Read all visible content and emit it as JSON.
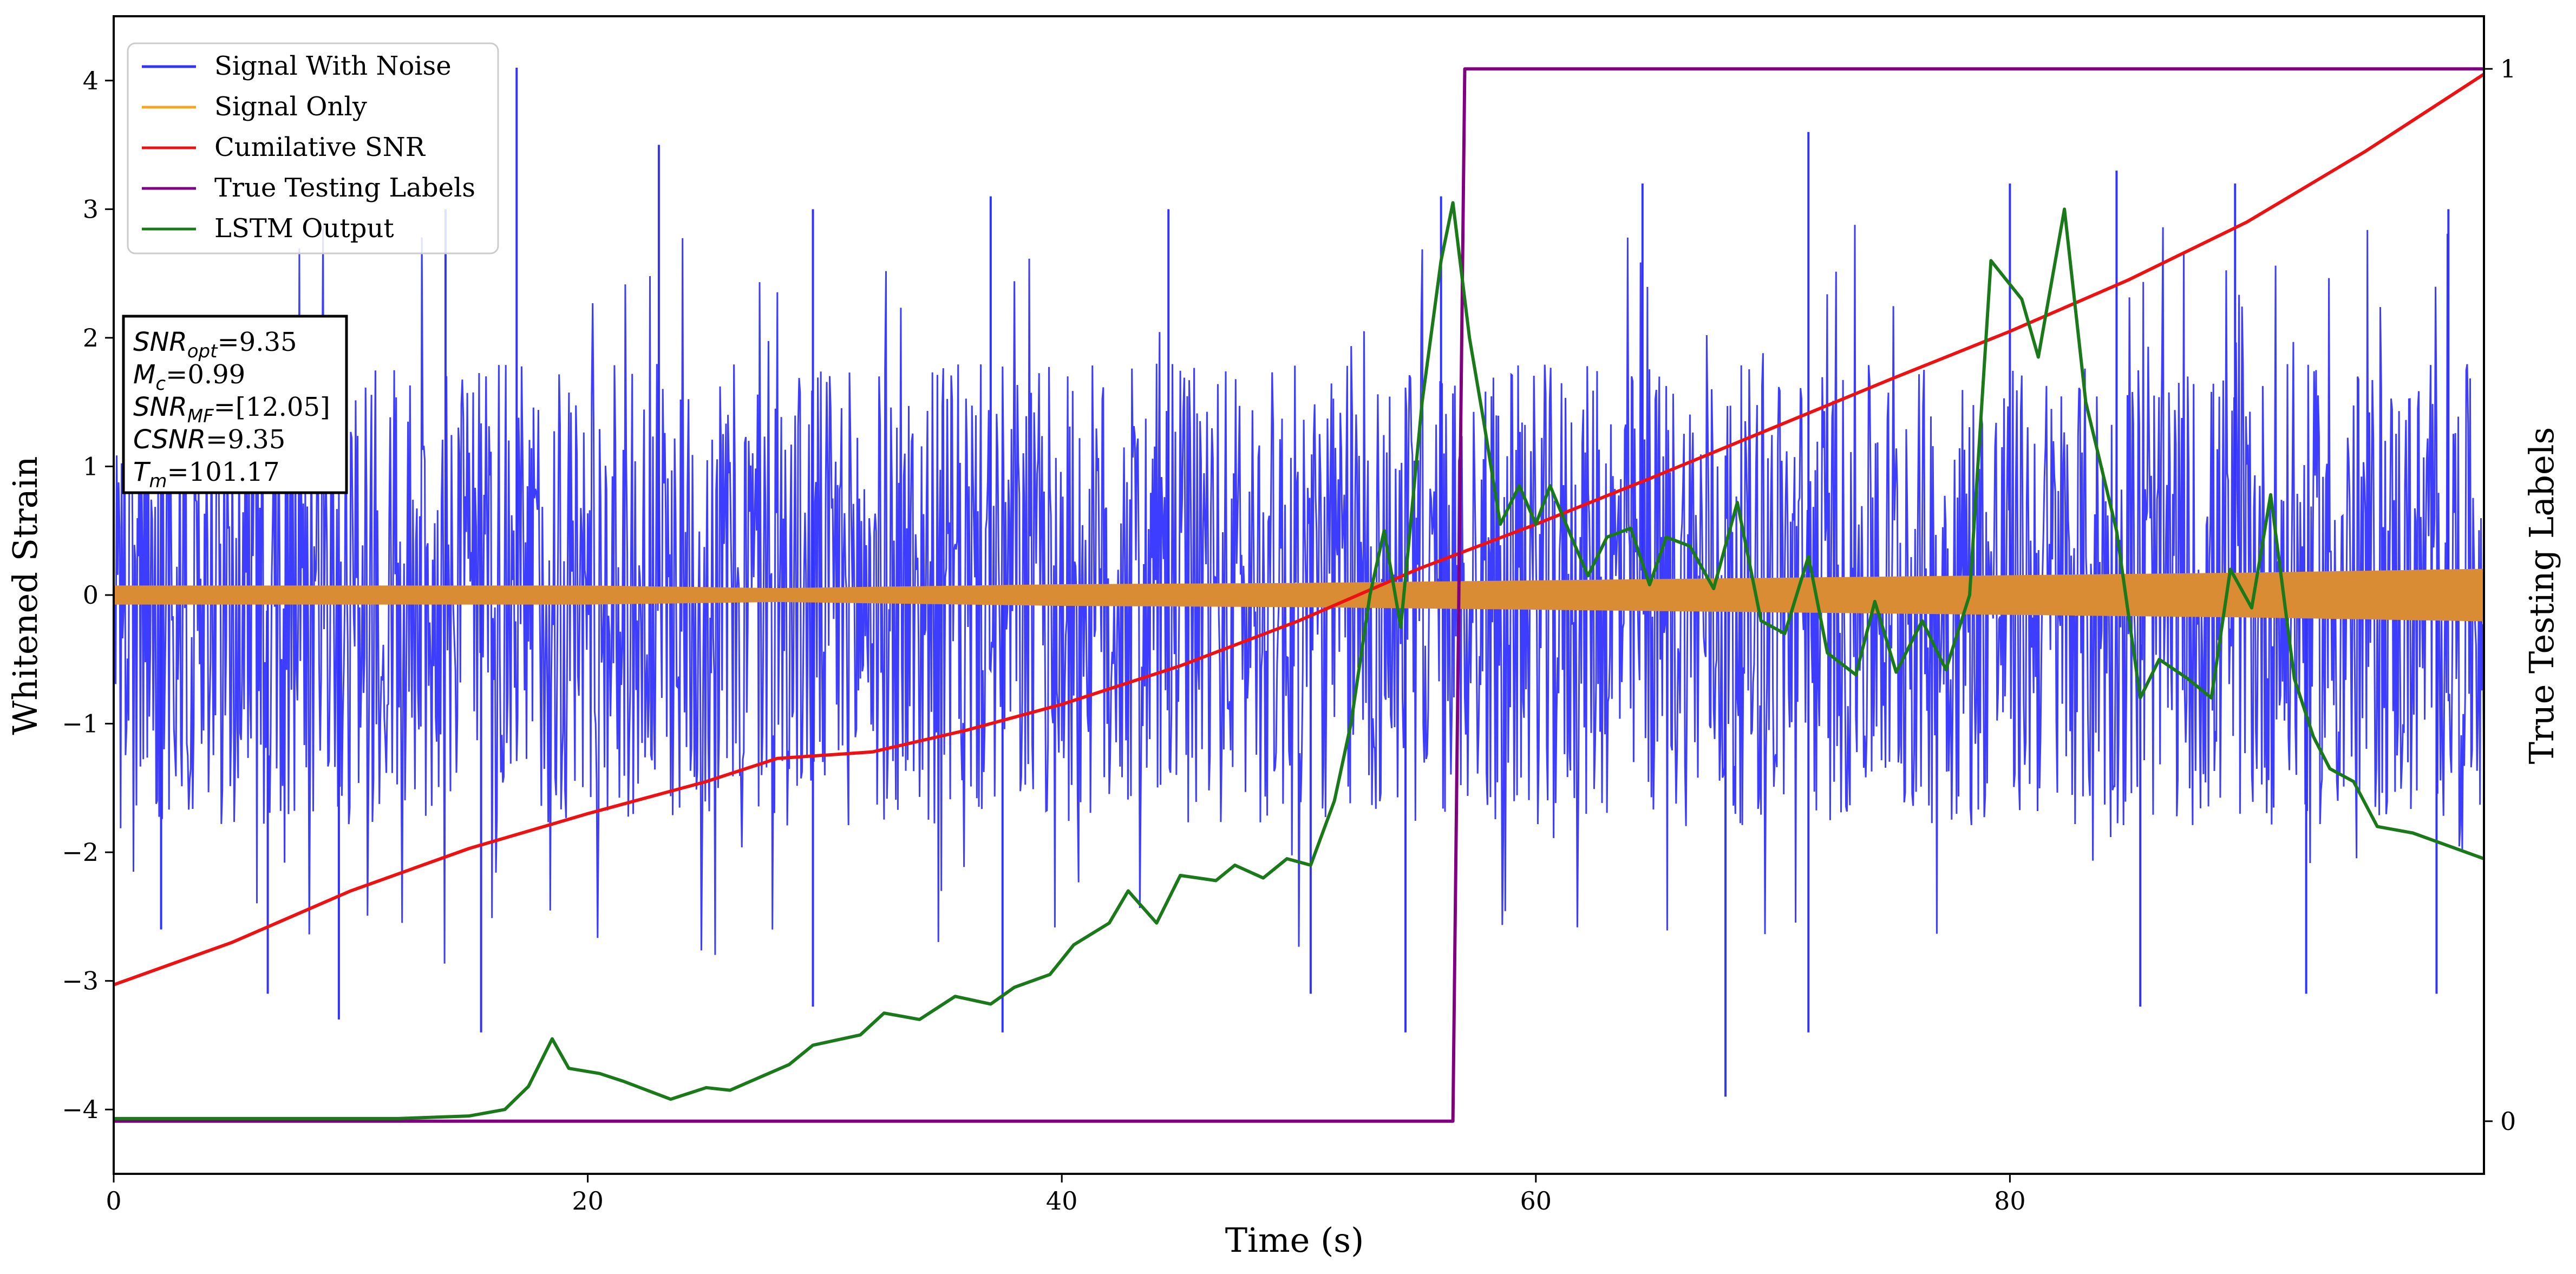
{
  "chart_data": {
    "type": "line",
    "xlabel": "Time (s)",
    "ylabel": "Whitened Strain",
    "y2label": "True Testing Labels",
    "xlim": [
      0,
      100
    ],
    "ylim": [
      -4.5,
      4.5
    ],
    "y2lim": [
      -0.05,
      1.05
    ],
    "xticks": [
      "0",
      "20",
      "40",
      "60",
      "80"
    ],
    "yticks": [
      "4",
      "3",
      "2",
      "1",
      "0",
      "−1",
      "−2",
      "−3",
      "−4"
    ],
    "y2ticks": [
      "1",
      "0"
    ],
    "legend_position": "top-left",
    "annotation": {
      "lines": [
        {
          "name": "SNR",
          "sub": "opt",
          "value": "=9.35"
        },
        {
          "name": "M",
          "sub": "c",
          "value": "=0.99"
        },
        {
          "name": "SNR",
          "sub": "MF",
          "value": "=[12.05]"
        },
        {
          "name": "CSNR",
          "sub": "",
          "value": "=9.35"
        },
        {
          "name": "T",
          "sub": "m",
          "value": "=101.17"
        }
      ]
    },
    "series": [
      {
        "name": "Signal With Noise",
        "color": "#3333ff",
        "axis": "left",
        "kind": "noise",
        "typical_range": [
          -1.8,
          1.8
        ],
        "peaks": [
          {
            "x": 17.0,
            "y": 4.1
          },
          {
            "x": 14.0,
            "y": 3.0
          },
          {
            "x": 23.0,
            "y": 3.5
          },
          {
            "x": 29.5,
            "y": 3.0
          },
          {
            "x": 37.0,
            "y": 3.1
          },
          {
            "x": 44.5,
            "y": 3.0
          },
          {
            "x": 56.0,
            "y": 3.1
          },
          {
            "x": 64.5,
            "y": 3.2
          },
          {
            "x": 71.5,
            "y": 3.6
          },
          {
            "x": 80.0,
            "y": 3.2
          },
          {
            "x": 84.5,
            "y": 3.3
          },
          {
            "x": 89.5,
            "y": 3.2
          },
          {
            "x": 98.5,
            "y": 3.0
          }
        ],
        "troughs": [
          {
            "x": 2.0,
            "y": -2.6
          },
          {
            "x": 6.5,
            "y": -3.1
          },
          {
            "x": 9.5,
            "y": -3.3
          },
          {
            "x": 15.5,
            "y": -3.4
          },
          {
            "x": 29.5,
            "y": -3.2
          },
          {
            "x": 37.5,
            "y": -3.4
          },
          {
            "x": 50.5,
            "y": -3.1
          },
          {
            "x": 54.5,
            "y": -3.4
          },
          {
            "x": 68.0,
            "y": -3.9
          },
          {
            "x": 71.5,
            "y": -3.4
          },
          {
            "x": 85.5,
            "y": -3.2
          },
          {
            "x": 92.5,
            "y": -3.1
          },
          {
            "x": 98.0,
            "y": -3.1
          }
        ]
      },
      {
        "name": "Signal Only",
        "color": "#f5a623",
        "axis": "left",
        "kind": "oscillation",
        "envelope": [
          {
            "x": 0,
            "y": 0.07
          },
          {
            "x": 20,
            "y": 0.07
          },
          {
            "x": 28,
            "y": 0.05
          },
          {
            "x": 32,
            "y": 0.06
          },
          {
            "x": 40,
            "y": 0.08
          },
          {
            "x": 50,
            "y": 0.09
          },
          {
            "x": 60,
            "y": 0.11
          },
          {
            "x": 70,
            "y": 0.13
          },
          {
            "x": 80,
            "y": 0.15
          },
          {
            "x": 90,
            "y": 0.17
          },
          {
            "x": 100,
            "y": 0.2
          }
        ]
      },
      {
        "name": "Cumilative SNR",
        "color": "#ee1111",
        "axis": "left",
        "points": [
          {
            "x": 0,
            "y": -3.03
          },
          {
            "x": 5,
            "y": -2.7
          },
          {
            "x": 10,
            "y": -2.3
          },
          {
            "x": 15,
            "y": -1.97
          },
          {
            "x": 20,
            "y": -1.7
          },
          {
            "x": 25,
            "y": -1.45
          },
          {
            "x": 28,
            "y": -1.27
          },
          {
            "x": 32,
            "y": -1.22
          },
          {
            "x": 36,
            "y": -1.05
          },
          {
            "x": 40,
            "y": -0.85
          },
          {
            "x": 45,
            "y": -0.55
          },
          {
            "x": 50,
            "y": -0.2
          },
          {
            "x": 55,
            "y": 0.2
          },
          {
            "x": 60,
            "y": 0.55
          },
          {
            "x": 65,
            "y": 0.92
          },
          {
            "x": 70,
            "y": 1.3
          },
          {
            "x": 75,
            "y": 1.68
          },
          {
            "x": 80,
            "y": 2.05
          },
          {
            "x": 85,
            "y": 2.45
          },
          {
            "x": 90,
            "y": 2.9
          },
          {
            "x": 95,
            "y": 3.45
          },
          {
            "x": 100,
            "y": 4.05
          }
        ]
      },
      {
        "name": "True Testing Labels",
        "color": "#800080",
        "axis": "right",
        "points": [
          {
            "x": 0,
            "y": 0
          },
          {
            "x": 56.5,
            "y": 0
          },
          {
            "x": 57.0,
            "y": 1
          },
          {
            "x": 100,
            "y": 1
          }
        ]
      },
      {
        "name": "LSTM Output",
        "color": "#1a7a1a",
        "axis": "left",
        "points": [
          {
            "x": 0,
            "y": -4.07
          },
          {
            "x": 12,
            "y": -4.07
          },
          {
            "x": 15,
            "y": -4.05
          },
          {
            "x": 16.5,
            "y": -4.0
          },
          {
            "x": 17.5,
            "y": -3.82
          },
          {
            "x": 18.5,
            "y": -3.45
          },
          {
            "x": 19.2,
            "y": -3.68
          },
          {
            "x": 20.5,
            "y": -3.72
          },
          {
            "x": 21.5,
            "y": -3.78
          },
          {
            "x": 23.5,
            "y": -3.92
          },
          {
            "x": 25,
            "y": -3.83
          },
          {
            "x": 26,
            "y": -3.85
          },
          {
            "x": 28.5,
            "y": -3.65
          },
          {
            "x": 29.5,
            "y": -3.5
          },
          {
            "x": 31.5,
            "y": -3.42
          },
          {
            "x": 32.5,
            "y": -3.25
          },
          {
            "x": 34,
            "y": -3.3
          },
          {
            "x": 35.5,
            "y": -3.12
          },
          {
            "x": 37,
            "y": -3.18
          },
          {
            "x": 38,
            "y": -3.05
          },
          {
            "x": 39.5,
            "y": -2.95
          },
          {
            "x": 40.5,
            "y": -2.72
          },
          {
            "x": 42,
            "y": -2.55
          },
          {
            "x": 42.8,
            "y": -2.3
          },
          {
            "x": 44,
            "y": -2.55
          },
          {
            "x": 45,
            "y": -2.18
          },
          {
            "x": 46.5,
            "y": -2.22
          },
          {
            "x": 47.3,
            "y": -2.1
          },
          {
            "x": 48.5,
            "y": -2.2
          },
          {
            "x": 49.5,
            "y": -2.05
          },
          {
            "x": 50.5,
            "y": -2.1
          },
          {
            "x": 51.5,
            "y": -1.6
          },
          {
            "x": 52.2,
            "y": -1.0
          },
          {
            "x": 53,
            "y": 0.0
          },
          {
            "x": 53.6,
            "y": 0.5
          },
          {
            "x": 54.3,
            "y": -0.25
          },
          {
            "x": 55.2,
            "y": 1.5
          },
          {
            "x": 56,
            "y": 2.6
          },
          {
            "x": 56.5,
            "y": 3.05
          },
          {
            "x": 57.2,
            "y": 2.0
          },
          {
            "x": 57.8,
            "y": 1.35
          },
          {
            "x": 58.5,
            "y": 0.55
          },
          {
            "x": 59.3,
            "y": 0.85
          },
          {
            "x": 60,
            "y": 0.55
          },
          {
            "x": 60.6,
            "y": 0.85
          },
          {
            "x": 61.5,
            "y": 0.45
          },
          {
            "x": 62.2,
            "y": 0.15
          },
          {
            "x": 63,
            "y": 0.45
          },
          {
            "x": 64,
            "y": 0.52
          },
          {
            "x": 64.8,
            "y": 0.08
          },
          {
            "x": 65.5,
            "y": 0.45
          },
          {
            "x": 66.5,
            "y": 0.38
          },
          {
            "x": 67.5,
            "y": 0.05
          },
          {
            "x": 68.5,
            "y": 0.72
          },
          {
            "x": 69.5,
            "y": -0.2
          },
          {
            "x": 70.5,
            "y": -0.3
          },
          {
            "x": 71.5,
            "y": 0.3
          },
          {
            "x": 72.3,
            "y": -0.45
          },
          {
            "x": 73.5,
            "y": -0.62
          },
          {
            "x": 74.3,
            "y": -0.05
          },
          {
            "x": 75.2,
            "y": -0.6
          },
          {
            "x": 76.3,
            "y": -0.2
          },
          {
            "x": 77.3,
            "y": -0.58
          },
          {
            "x": 78.3,
            "y": 0.0
          },
          {
            "x": 79.2,
            "y": 2.6
          },
          {
            "x": 80.5,
            "y": 2.3
          },
          {
            "x": 81.2,
            "y": 1.85
          },
          {
            "x": 82.3,
            "y": 3.0
          },
          {
            "x": 83.2,
            "y": 1.5
          },
          {
            "x": 84.5,
            "y": 0.5
          },
          {
            "x": 85.5,
            "y": -0.8
          },
          {
            "x": 86.3,
            "y": -0.5
          },
          {
            "x": 87.5,
            "y": -0.65
          },
          {
            "x": 88.5,
            "y": -0.8
          },
          {
            "x": 89.3,
            "y": 0.2
          },
          {
            "x": 90.2,
            "y": -0.1
          },
          {
            "x": 91,
            "y": 0.78
          },
          {
            "x": 92,
            "y": -0.65
          },
          {
            "x": 92.8,
            "y": -1.1
          },
          {
            "x": 93.5,
            "y": -1.35
          },
          {
            "x": 94.5,
            "y": -1.45
          },
          {
            "x": 95.5,
            "y": -1.8
          },
          {
            "x": 97,
            "y": -1.85
          },
          {
            "x": 98.5,
            "y": -1.95
          },
          {
            "x": 100,
            "y": -2.05
          }
        ]
      }
    ]
  }
}
